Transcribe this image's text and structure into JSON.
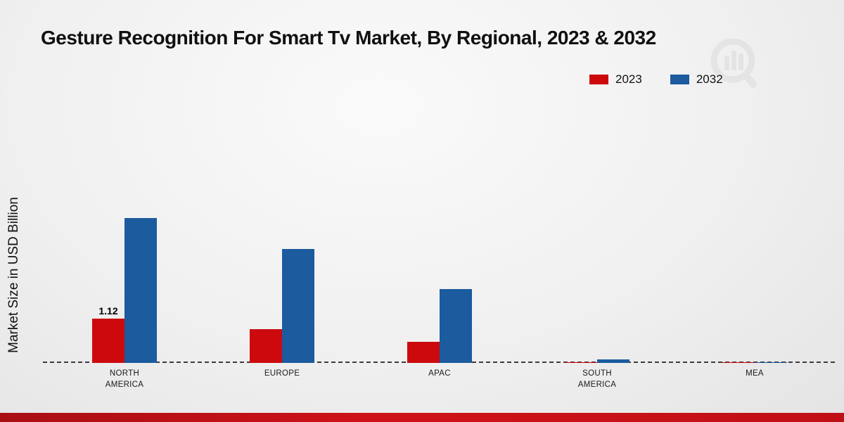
{
  "title": "Gesture Recognition For Smart Tv Market, By Regional, 2023 & 2032",
  "ylabel": "Market Size in USD Billion",
  "chart_data": {
    "type": "bar",
    "categories": [
      "NORTH AMERICA",
      "EUROPE",
      "APAC",
      "SOUTH AMERICA",
      "MEA"
    ],
    "series": [
      {
        "name": "2023",
        "color": "#cc0a0e",
        "values": [
          1.12,
          0.85,
          0.53,
          0.02,
          0.01
        ]
      },
      {
        "name": "2032",
        "color": "#1b5b9e",
        "values": [
          3.68,
          2.9,
          1.87,
          0.09,
          0.02
        ]
      }
    ],
    "annotations": [
      {
        "series_index": 0,
        "category_index": 0,
        "text": "1.12"
      }
    ],
    "ylim": [
      0,
      4
    ],
    "baseline_style": "dashed",
    "legend_position": "top-right",
    "grid": false
  },
  "colors": {
    "series_2023": "#cc0a0e",
    "series_2032": "#1b5b9e",
    "footer_band": "#c01016",
    "baseline": "#3c3c3c"
  }
}
